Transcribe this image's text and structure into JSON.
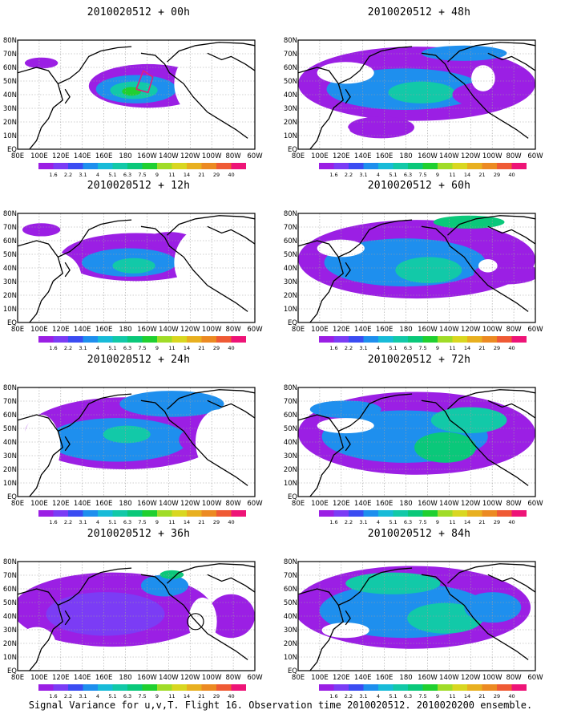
{
  "footer": "Signal Variance for u,v,T. Flight 16. Observation time 2010020512. 2010020200 ensemble.",
  "colors": {
    "levels": [
      "#9b1fe4",
      "#7b3cf5",
      "#3b4cf2",
      "#1e8fee",
      "#18bbd8",
      "#12c9a8",
      "#0ac87a",
      "#20d030",
      "#a0dc28",
      "#d9d720",
      "#e8b020",
      "#ec8a22",
      "#ef5a35",
      "#ee1477"
    ],
    "land_line": "#000000",
    "grid_line": "#a0a0a0",
    "flight_track": "#e0207a"
  },
  "chart_data": [
    {
      "type": "heatmap",
      "title": "2010020512 + 00h",
      "x_ticks": [
        "80E",
        "100E",
        "120E",
        "140E",
        "160E",
        "180",
        "160W",
        "140W",
        "120W",
        "100W",
        "80W",
        "60W"
      ],
      "y_ticks": [
        "EQ",
        "10N",
        "20N",
        "30N",
        "40N",
        "50N",
        "60N",
        "70N",
        "80N"
      ],
      "colorbar_labels": [
        "1.6",
        "2.2",
        "3.1",
        "4",
        "5.1",
        "6.3",
        "7.5",
        "9",
        "11",
        "14",
        "21",
        "29",
        "40"
      ],
      "grid": true
    },
    {
      "type": "heatmap",
      "title": "2010020512 + 48h",
      "x_ticks": [
        "80E",
        "100E",
        "120E",
        "140E",
        "160E",
        "180",
        "160W",
        "140W",
        "120W",
        "100W",
        "80W",
        "60W"
      ],
      "y_ticks": [
        "EQ",
        "10N",
        "20N",
        "30N",
        "40N",
        "50N",
        "60N",
        "70N",
        "80N"
      ],
      "colorbar_labels": [
        "1.6",
        "2.2",
        "3.1",
        "4",
        "5.1",
        "6.3",
        "7.5",
        "9",
        "11",
        "14",
        "21",
        "29",
        "40"
      ],
      "grid": true
    },
    {
      "type": "heatmap",
      "title": "2010020512 + 12h",
      "x_ticks": [
        "80E",
        "100E",
        "120E",
        "140E",
        "160E",
        "180",
        "160W",
        "140W",
        "120W",
        "100W",
        "80W",
        "60W"
      ],
      "y_ticks": [
        "EQ",
        "10N",
        "20N",
        "30N",
        "40N",
        "50N",
        "60N",
        "70N",
        "80N"
      ],
      "colorbar_labels": [
        "1.6",
        "2.2",
        "3.1",
        "4",
        "5.1",
        "6.3",
        "7.5",
        "9",
        "11",
        "14",
        "21",
        "29",
        "40"
      ],
      "grid": true
    },
    {
      "type": "heatmap",
      "title": "2010020512 + 60h",
      "x_ticks": [
        "80E",
        "100E",
        "120E",
        "140E",
        "160E",
        "180",
        "160W",
        "140W",
        "120W",
        "100W",
        "80W",
        "60W"
      ],
      "y_ticks": [
        "EQ",
        "10N",
        "20N",
        "30N",
        "40N",
        "50N",
        "60N",
        "70N",
        "80N"
      ],
      "colorbar_labels": [
        "1.6",
        "2.2",
        "3.1",
        "4",
        "5.1",
        "6.3",
        "7.5",
        "9",
        "11",
        "14",
        "21",
        "29",
        "40"
      ],
      "grid": true
    },
    {
      "type": "heatmap",
      "title": "2010020512 + 24h",
      "x_ticks": [
        "80E",
        "100E",
        "120E",
        "140E",
        "160E",
        "180",
        "160W",
        "140W",
        "120W",
        "100W",
        "80W",
        "60W"
      ],
      "y_ticks": [
        "EQ",
        "10N",
        "20N",
        "30N",
        "40N",
        "50N",
        "60N",
        "70N",
        "80N"
      ],
      "colorbar_labels": [
        "1.6",
        "2.2",
        "3.1",
        "4",
        "5.1",
        "6.3",
        "7.5",
        "9",
        "11",
        "14",
        "21",
        "29",
        "40"
      ],
      "grid": true
    },
    {
      "type": "heatmap",
      "title": "2010020512 + 72h",
      "x_ticks": [
        "80E",
        "100E",
        "120E",
        "140E",
        "160E",
        "180",
        "160W",
        "140W",
        "120W",
        "100W",
        "80W",
        "60W"
      ],
      "y_ticks": [
        "EQ",
        "10N",
        "20N",
        "30N",
        "40N",
        "50N",
        "60N",
        "70N",
        "80N"
      ],
      "colorbar_labels": [
        "1.6",
        "2.2",
        "3.1",
        "4",
        "5.1",
        "6.3",
        "7.5",
        "9",
        "11",
        "14",
        "21",
        "29",
        "40"
      ],
      "grid": true
    },
    {
      "type": "heatmap",
      "title": "2010020512 + 36h",
      "x_ticks": [
        "80E",
        "100E",
        "120E",
        "140E",
        "160E",
        "180",
        "160W",
        "140W",
        "120W",
        "100W",
        "80W",
        "60W"
      ],
      "y_ticks": [
        "EQ",
        "10N",
        "20N",
        "30N",
        "40N",
        "50N",
        "60N",
        "70N",
        "80N"
      ],
      "colorbar_labels": [
        "1.6",
        "2.2",
        "3.1",
        "4",
        "5.1",
        "6.3",
        "7.5",
        "9",
        "11",
        "14",
        "21",
        "29",
        "40"
      ],
      "grid": true
    },
    {
      "type": "heatmap",
      "title": "2010020512 + 84h",
      "x_ticks": [
        "80E",
        "100E",
        "120E",
        "140E",
        "160E",
        "180",
        "160W",
        "140W",
        "120W",
        "100W",
        "80W",
        "60W"
      ],
      "y_ticks": [
        "EQ",
        "10N",
        "20N",
        "30N",
        "40N",
        "50N",
        "60N",
        "70N",
        "80N"
      ],
      "colorbar_labels": [
        "1.6",
        "2.2",
        "3.1",
        "4",
        "5.1",
        "6.3",
        "7.5",
        "9",
        "11",
        "14",
        "21",
        "29",
        "40"
      ],
      "grid": true
    }
  ]
}
